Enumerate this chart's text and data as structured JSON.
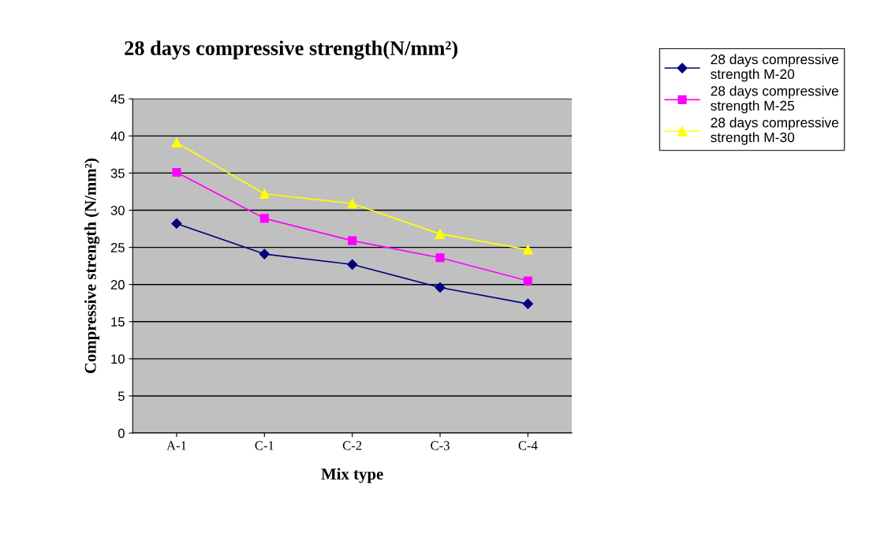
{
  "chart_data": {
    "type": "line",
    "title": "28 days compressive strength(N/mm²)",
    "xlabel": "Mix type",
    "ylabel": "Compressive strength (N/mm²)",
    "categories": [
      "A-1",
      "C-1",
      "C-2",
      "C-3",
      "C-4"
    ],
    "series": [
      {
        "name": "28 days compressive\nstrength M-20",
        "color": "#000080",
        "marker": "diamond",
        "values": [
          28.2,
          24.1,
          22.7,
          19.6,
          17.4
        ]
      },
      {
        "name": "28 days compressive\nstrength M-25",
        "color": "#ff00ff",
        "marker": "square",
        "values": [
          35.1,
          28.9,
          25.9,
          23.6,
          20.5
        ]
      },
      {
        "name": "28 days compressive\nstrength M-30",
        "color": "#ffff00",
        "marker": "triangle",
        "values": [
          39.1,
          32.2,
          30.9,
          26.8,
          24.7
        ]
      }
    ],
    "ylim": [
      0,
      45
    ],
    "yticks": [
      0,
      5,
      10,
      15,
      20,
      25,
      30,
      35,
      40,
      45
    ],
    "grid": "y",
    "legend": "top right"
  }
}
